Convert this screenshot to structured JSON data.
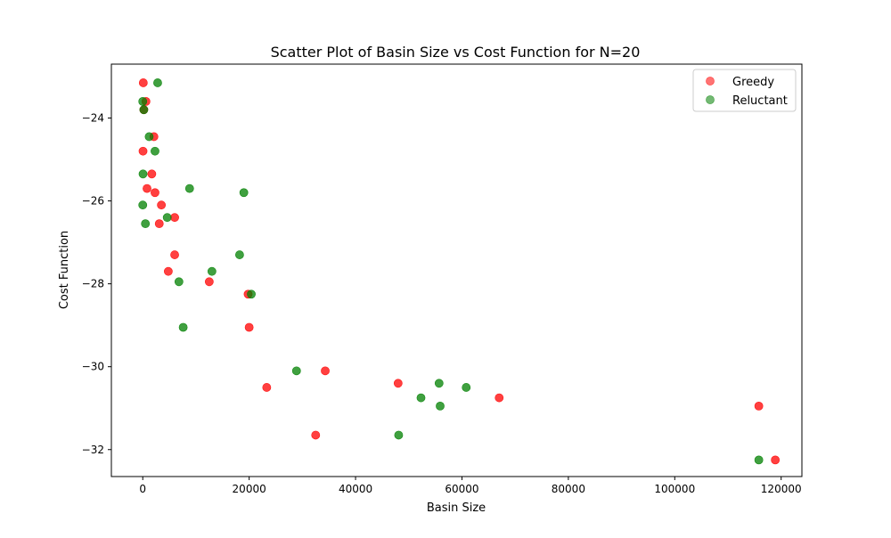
{
  "chart_data": {
    "type": "scatter",
    "title": "Scatter Plot of Basin Size vs Cost Function for N=20",
    "xlabel": "Basin Size",
    "ylabel": "Cost Function",
    "xlim": [
      -5900,
      123900
    ],
    "ylim": [
      -32.65,
      -22.7
    ],
    "x_ticks": [
      0,
      20000,
      40000,
      60000,
      80000,
      100000,
      120000
    ],
    "x_tick_labels": [
      "0",
      "20000",
      "40000",
      "60000",
      "80000",
      "100000",
      "120000"
    ],
    "y_ticks": [
      -32,
      -30,
      -28,
      -26,
      -24
    ],
    "y_tick_labels": [
      "−32",
      "−30",
      "−28",
      "−26",
      "−24"
    ],
    "grid": false,
    "legend_placement": "top-right",
    "colors": {
      "Greedy": "#ff0000",
      "Reluctant": "#008000"
    },
    "series": [
      {
        "name": "Greedy",
        "points": [
          [
            100,
            -23.15
          ],
          [
            600,
            -23.6
          ],
          [
            200,
            -23.8
          ],
          [
            2100,
            -24.45
          ],
          [
            50,
            -24.8
          ],
          [
            1700,
            -25.35
          ],
          [
            800,
            -25.7
          ],
          [
            2300,
            -25.8
          ],
          [
            3500,
            -26.1
          ],
          [
            6000,
            -26.4
          ],
          [
            3100,
            -26.55
          ],
          [
            6000,
            -27.3
          ],
          [
            4800,
            -27.7
          ],
          [
            12500,
            -27.95
          ],
          [
            19800,
            -28.25
          ],
          [
            20000,
            -29.05
          ],
          [
            34300,
            -30.1
          ],
          [
            23300,
            -30.5
          ],
          [
            48000,
            -30.4
          ],
          [
            67000,
            -30.75
          ],
          [
            32500,
            -31.65
          ],
          [
            115800,
            -30.95
          ],
          [
            118900,
            -32.25
          ]
        ]
      },
      {
        "name": "Reluctant",
        "points": [
          [
            2800,
            -23.15
          ],
          [
            0,
            -23.6
          ],
          [
            200,
            -23.8
          ],
          [
            1200,
            -24.45
          ],
          [
            2300,
            -24.8
          ],
          [
            50,
            -25.35
          ],
          [
            8800,
            -25.7
          ],
          [
            19000,
            -25.8
          ],
          [
            0,
            -26.1
          ],
          [
            4600,
            -26.4
          ],
          [
            500,
            -26.55
          ],
          [
            18200,
            -27.3
          ],
          [
            13000,
            -27.7
          ],
          [
            6800,
            -27.95
          ],
          [
            20400,
            -28.25
          ],
          [
            7600,
            -29.05
          ],
          [
            28900,
            -30.1
          ],
          [
            55700,
            -30.4
          ],
          [
            60800,
            -30.5
          ],
          [
            52300,
            -30.75
          ],
          [
            55900,
            -30.95
          ],
          [
            48100,
            -31.65
          ],
          [
            115800,
            -32.25
          ]
        ]
      }
    ]
  }
}
